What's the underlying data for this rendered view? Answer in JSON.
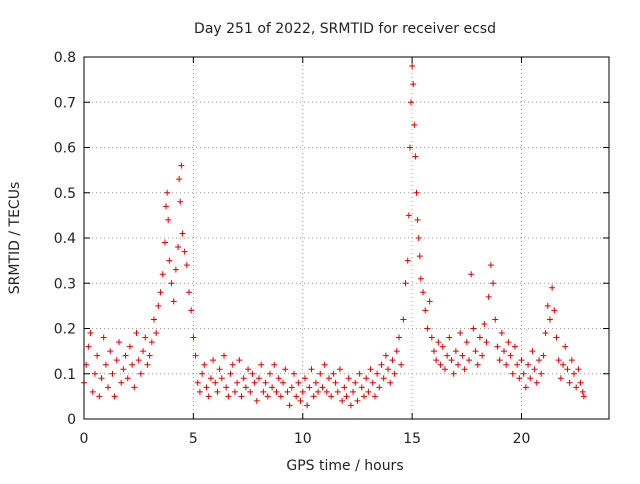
{
  "chart_data": {
    "type": "scatter",
    "title": "Day 251 of 2022, SRMTID for receiver ecsd",
    "xlabel": "GPS time / hours",
    "ylabel": "SRMTID / TECUs",
    "xlim": [
      0,
      24
    ],
    "ylim": [
      0,
      0.8
    ],
    "xticks": [
      "0",
      "5",
      "10",
      "15",
      "20"
    ],
    "yticks": [
      "0",
      "0.1",
      "0.2",
      "0.3",
      "0.4",
      "0.5",
      "0.6",
      "0.7",
      "0.8"
    ],
    "grid": true,
    "marker": "+",
    "color": "#e00000",
    "series": [
      {
        "name": "SRMTID",
        "points": [
          [
            0.0,
            0.08
          ],
          [
            0.1,
            0.12
          ],
          [
            0.2,
            0.16
          ],
          [
            0.3,
            0.19
          ],
          [
            0.4,
            0.06
          ],
          [
            0.5,
            0.1
          ],
          [
            0.6,
            0.14
          ],
          [
            0.7,
            0.05
          ],
          [
            0.8,
            0.09
          ],
          [
            0.9,
            0.18
          ],
          [
            1.0,
            0.12
          ],
          [
            1.1,
            0.07
          ],
          [
            1.2,
            0.15
          ],
          [
            1.3,
            0.1
          ],
          [
            1.4,
            0.05
          ],
          [
            1.5,
            0.13
          ],
          [
            1.6,
            0.17
          ],
          [
            1.7,
            0.08
          ],
          [
            1.8,
            0.11
          ],
          [
            1.9,
            0.14
          ],
          [
            2.0,
            0.09
          ],
          [
            2.1,
            0.16
          ],
          [
            2.2,
            0.12
          ],
          [
            2.3,
            0.07
          ],
          [
            2.4,
            0.19
          ],
          [
            2.5,
            0.13
          ],
          [
            2.6,
            0.1
          ],
          [
            2.7,
            0.15
          ],
          [
            2.8,
            0.18
          ],
          [
            2.9,
            0.12
          ],
          [
            3.0,
            0.14
          ],
          [
            3.1,
            0.17
          ],
          [
            3.2,
            0.22
          ],
          [
            3.3,
            0.19
          ],
          [
            3.4,
            0.25
          ],
          [
            3.5,
            0.28
          ],
          [
            3.6,
            0.32
          ],
          [
            3.7,
            0.39
          ],
          [
            3.75,
            0.47
          ],
          [
            3.8,
            0.5
          ],
          [
            3.85,
            0.44
          ],
          [
            3.9,
            0.35
          ],
          [
            4.0,
            0.3
          ],
          [
            4.1,
            0.26
          ],
          [
            4.2,
            0.33
          ],
          [
            4.3,
            0.38
          ],
          [
            4.35,
            0.53
          ],
          [
            4.4,
            0.48
          ],
          [
            4.45,
            0.56
          ],
          [
            4.5,
            0.41
          ],
          [
            4.6,
            0.37
          ],
          [
            4.7,
            0.34
          ],
          [
            4.8,
            0.28
          ],
          [
            4.9,
            0.24
          ],
          [
            5.0,
            0.18
          ],
          [
            5.1,
            0.14
          ],
          [
            5.2,
            0.08
          ],
          [
            5.3,
            0.06
          ],
          [
            5.4,
            0.1
          ],
          [
            5.5,
            0.12
          ],
          [
            5.6,
            0.07
          ],
          [
            5.7,
            0.05
          ],
          [
            5.8,
            0.09
          ],
          [
            5.9,
            0.13
          ],
          [
            6.0,
            0.08
          ],
          [
            6.1,
            0.06
          ],
          [
            6.2,
            0.11
          ],
          [
            6.3,
            0.09
          ],
          [
            6.4,
            0.14
          ],
          [
            6.5,
            0.07
          ],
          [
            6.6,
            0.05
          ],
          [
            6.7,
            0.1
          ],
          [
            6.8,
            0.12
          ],
          [
            6.9,
            0.06
          ],
          [
            7.0,
            0.08
          ],
          [
            7.1,
            0.13
          ],
          [
            7.2,
            0.05
          ],
          [
            7.3,
            0.09
          ],
          [
            7.4,
            0.07
          ],
          [
            7.5,
            0.11
          ],
          [
            7.6,
            0.06
          ],
          [
            7.7,
            0.1
          ],
          [
            7.8,
            0.08
          ],
          [
            7.9,
            0.04
          ],
          [
            8.0,
            0.09
          ],
          [
            8.1,
            0.12
          ],
          [
            8.2,
            0.06
          ],
          [
            8.3,
            0.08
          ],
          [
            8.4,
            0.05
          ],
          [
            8.5,
            0.1
          ],
          [
            8.6,
            0.07
          ],
          [
            8.7,
            0.12
          ],
          [
            8.8,
            0.06
          ],
          [
            8.9,
            0.09
          ],
          [
            9.0,
            0.05
          ],
          [
            9.1,
            0.08
          ],
          [
            9.2,
            0.11
          ],
          [
            9.3,
            0.06
          ],
          [
            9.4,
            0.03
          ],
          [
            9.5,
            0.07
          ],
          [
            9.6,
            0.1
          ],
          [
            9.7,
            0.05
          ],
          [
            9.8,
            0.08
          ],
          [
            9.9,
            0.04
          ],
          [
            10.0,
            0.06
          ],
          [
            10.1,
            0.09
          ],
          [
            10.2,
            0.03
          ],
          [
            10.3,
            0.07
          ],
          [
            10.4,
            0.11
          ],
          [
            10.5,
            0.05
          ],
          [
            10.6,
            0.08
          ],
          [
            10.7,
            0.06
          ],
          [
            10.8,
            0.1
          ],
          [
            10.9,
            0.07
          ],
          [
            11.0,
            0.12
          ],
          [
            11.1,
            0.06
          ],
          [
            11.2,
            0.09
          ],
          [
            11.3,
            0.05
          ],
          [
            11.4,
            0.1
          ],
          [
            11.5,
            0.08
          ],
          [
            11.6,
            0.06
          ],
          [
            11.7,
            0.11
          ],
          [
            11.8,
            0.04
          ],
          [
            11.9,
            0.07
          ],
          [
            12.0,
            0.05
          ],
          [
            12.1,
            0.09
          ],
          [
            12.2,
            0.03
          ],
          [
            12.3,
            0.06
          ],
          [
            12.4,
            0.08
          ],
          [
            12.5,
            0.04
          ],
          [
            12.6,
            0.1
          ],
          [
            12.7,
            0.07
          ],
          [
            12.8,
            0.05
          ],
          [
            12.9,
            0.09
          ],
          [
            13.0,
            0.06
          ],
          [
            13.1,
            0.11
          ],
          [
            13.2,
            0.08
          ],
          [
            13.3,
            0.05
          ],
          [
            13.4,
            0.1
          ],
          [
            13.5,
            0.07
          ],
          [
            13.6,
            0.12
          ],
          [
            13.7,
            0.09
          ],
          [
            13.8,
            0.14
          ],
          [
            13.9,
            0.11
          ],
          [
            14.0,
            0.08
          ],
          [
            14.1,
            0.13
          ],
          [
            14.2,
            0.1
          ],
          [
            14.3,
            0.15
          ],
          [
            14.4,
            0.18
          ],
          [
            14.5,
            0.12
          ],
          [
            14.6,
            0.22
          ],
          [
            14.7,
            0.3
          ],
          [
            14.8,
            0.35
          ],
          [
            14.85,
            0.45
          ],
          [
            14.9,
            0.6
          ],
          [
            14.95,
            0.7
          ],
          [
            15.0,
            0.78
          ],
          [
            15.05,
            0.74
          ],
          [
            15.1,
            0.65
          ],
          [
            15.15,
            0.58
          ],
          [
            15.2,
            0.5
          ],
          [
            15.25,
            0.44
          ],
          [
            15.3,
            0.4
          ],
          [
            15.35,
            0.36
          ],
          [
            15.4,
            0.31
          ],
          [
            15.5,
            0.28
          ],
          [
            15.6,
            0.24
          ],
          [
            15.7,
            0.2
          ],
          [
            15.8,
            0.26
          ],
          [
            15.9,
            0.18
          ],
          [
            16.0,
            0.15
          ],
          [
            16.1,
            0.13
          ],
          [
            16.2,
            0.17
          ],
          [
            16.3,
            0.12
          ],
          [
            16.4,
            0.16
          ],
          [
            16.5,
            0.11
          ],
          [
            16.6,
            0.14
          ],
          [
            16.7,
            0.18
          ],
          [
            16.8,
            0.13
          ],
          [
            16.9,
            0.1
          ],
          [
            17.0,
            0.15
          ],
          [
            17.1,
            0.12
          ],
          [
            17.2,
            0.19
          ],
          [
            17.3,
            0.14
          ],
          [
            17.4,
            0.11
          ],
          [
            17.5,
            0.17
          ],
          [
            17.6,
            0.13
          ],
          [
            17.7,
            0.32
          ],
          [
            17.8,
            0.2
          ],
          [
            17.9,
            0.15
          ],
          [
            18.0,
            0.12
          ],
          [
            18.1,
            0.18
          ],
          [
            18.2,
            0.14
          ],
          [
            18.3,
            0.21
          ],
          [
            18.4,
            0.17
          ],
          [
            18.5,
            0.27
          ],
          [
            18.6,
            0.34
          ],
          [
            18.7,
            0.3
          ],
          [
            18.8,
            0.22
          ],
          [
            18.9,
            0.16
          ],
          [
            19.0,
            0.13
          ],
          [
            19.1,
            0.19
          ],
          [
            19.2,
            0.15
          ],
          [
            19.3,
            0.12
          ],
          [
            19.4,
            0.17
          ],
          [
            19.5,
            0.14
          ],
          [
            19.6,
            0.1
          ],
          [
            19.7,
            0.16
          ],
          [
            19.8,
            0.12
          ],
          [
            19.9,
            0.09
          ],
          [
            20.0,
            0.13
          ],
          [
            20.1,
            0.1
          ],
          [
            20.2,
            0.07
          ],
          [
            20.3,
            0.12
          ],
          [
            20.4,
            0.09
          ],
          [
            20.5,
            0.15
          ],
          [
            20.6,
            0.11
          ],
          [
            20.7,
            0.08
          ],
          [
            20.8,
            0.13
          ],
          [
            20.9,
            0.1
          ],
          [
            21.0,
            0.14
          ],
          [
            21.1,
            0.19
          ],
          [
            21.2,
            0.25
          ],
          [
            21.3,
            0.22
          ],
          [
            21.4,
            0.29
          ],
          [
            21.5,
            0.24
          ],
          [
            21.6,
            0.18
          ],
          [
            21.7,
            0.13
          ],
          [
            21.8,
            0.09
          ],
          [
            21.9,
            0.12
          ],
          [
            22.0,
            0.16
          ],
          [
            22.1,
            0.11
          ],
          [
            22.2,
            0.08
          ],
          [
            22.3,
            0.13
          ],
          [
            22.4,
            0.1
          ],
          [
            22.5,
            0.07
          ],
          [
            22.6,
            0.11
          ],
          [
            22.7,
            0.08
          ],
          [
            22.8,
            0.06
          ],
          [
            22.85,
            0.05
          ]
        ]
      }
    ]
  }
}
